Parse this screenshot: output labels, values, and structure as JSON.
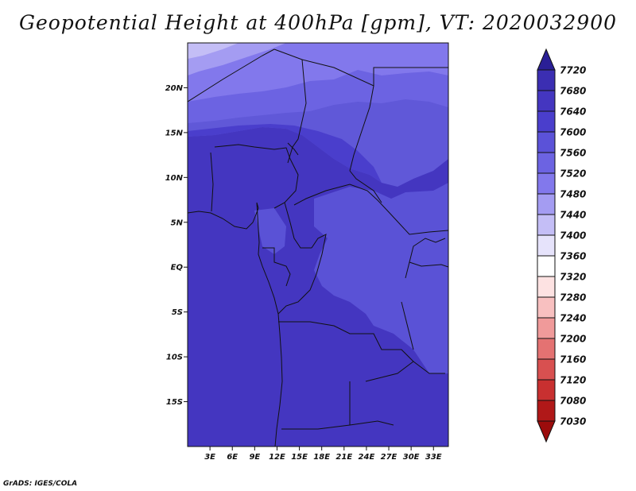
{
  "title": "Geopotential Height at 400hPa [gpm], VT: 2020032900",
  "credit": "GrADS: IGES/COLA",
  "map": {
    "lon_range": [
      0,
      35
    ],
    "lat_range": [
      -20,
      25
    ],
    "lat_ticks": [
      {
        "value": 20,
        "label": "20N"
      },
      {
        "value": 15,
        "label": "15N"
      },
      {
        "value": 10,
        "label": "10N"
      },
      {
        "value": 5,
        "label": "5N"
      },
      {
        "value": 0,
        "label": "EQ"
      },
      {
        "value": -5,
        "label": "5S"
      },
      {
        "value": -10,
        "label": "10S"
      },
      {
        "value": -15,
        "label": "15S"
      }
    ],
    "lon_ticks": [
      {
        "value": 3,
        "label": "3E"
      },
      {
        "value": 6,
        "label": "6E"
      },
      {
        "value": 9,
        "label": "9E"
      },
      {
        "value": 12,
        "label": "12E"
      },
      {
        "value": 15,
        "label": "15E"
      },
      {
        "value": 18,
        "label": "18E"
      },
      {
        "value": 21,
        "label": "21E"
      },
      {
        "value": 24,
        "label": "24E"
      },
      {
        "value": 27,
        "label": "27E"
      },
      {
        "value": 30,
        "label": "30E"
      },
      {
        "value": 33,
        "label": "33E"
      }
    ]
  },
  "colorbar": {
    "labels": [
      "7720",
      "7680",
      "7640",
      "7600",
      "7560",
      "7520",
      "7480",
      "7440",
      "7400",
      "7360",
      "7320",
      "7280",
      "7240",
      "7200",
      "7160",
      "7120",
      "7080",
      "7030"
    ],
    "colors": [
      "#2a1f96",
      "#3b2eb2",
      "#4436c0",
      "#4a3ecc",
      "#5b52d8",
      "#6c63e2",
      "#8278ec",
      "#a49cf2",
      "#c4bef6",
      "#e6e3fb",
      "#ffffff",
      "#fde2e2",
      "#f8c0c0",
      "#f09a9a",
      "#e47272",
      "#d85050",
      "#c83030",
      "#b01818",
      "#9c0c0c"
    ]
  },
  "field_bands": [
    {
      "level": 7560,
      "color": "#5a52d6"
    },
    {
      "level": 7600,
      "color": "#4a3ecc"
    },
    {
      "level": 7640,
      "color": "#4436c0"
    },
    {
      "level": 7520,
      "color": "#6c63e2"
    },
    {
      "level": 7480,
      "color": "#8278ec"
    },
    {
      "level": 7440,
      "color": "#a49cf2"
    }
  ]
}
